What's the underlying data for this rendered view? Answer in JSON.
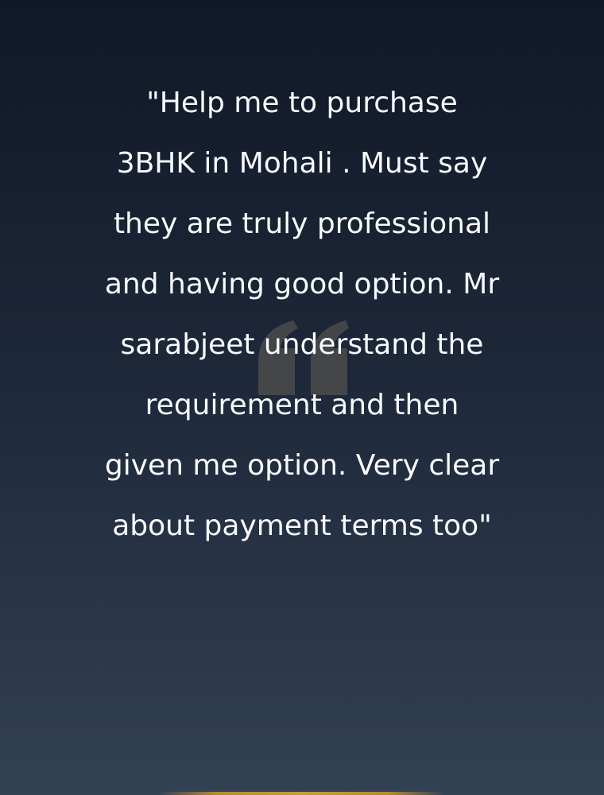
{
  "testimonial": {
    "quote": "\"Help me to purchase 3BHK in Mohali . Must say they are truly professional and having good option. Mr sarabjeet understand the requirement and then given me option. Very clear about payment terms too\"",
    "quote_icon": "quote-icon"
  },
  "colors": {
    "background_top": "#111827",
    "background_bottom": "#334155",
    "text": "#f8fafc",
    "icon": "#525252",
    "accent": "#c99a3b"
  }
}
